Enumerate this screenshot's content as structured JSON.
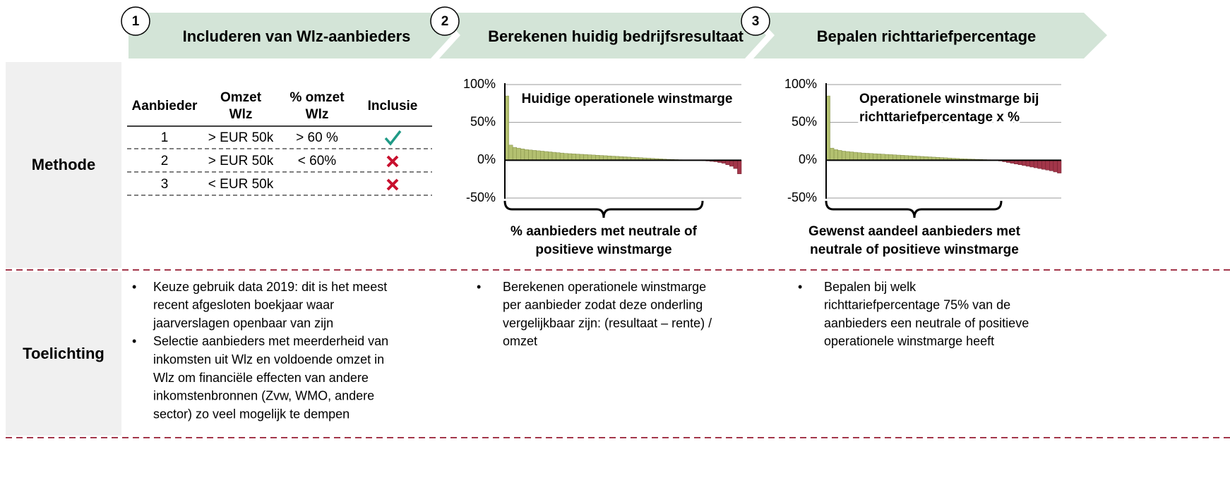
{
  "steps": [
    {
      "number": "1",
      "title": "Includeren van Wlz-aanbieders"
    },
    {
      "number": "2",
      "title": "Berekenen huidig bedrijfsresultaat"
    },
    {
      "number": "3",
      "title": "Bepalen richttariefpercentage"
    }
  ],
  "row_labels": [
    "Methode",
    "Toelichting"
  ],
  "table": {
    "headers": [
      [
        "Aanbieder"
      ],
      [
        "Omzet",
        "Wlz"
      ],
      [
        "% omzet",
        "Wlz"
      ],
      [
        "Inclusie"
      ]
    ],
    "rows": [
      {
        "cells": [
          "1",
          "> EUR 50k",
          "> 60 %"
        ],
        "included": true
      },
      {
        "cells": [
          "2",
          "> EUR 50k",
          "< 60%"
        ],
        "included": false
      },
      {
        "cells": [
          "3",
          "< EUR 50k"
        ],
        "included": false
      }
    ]
  },
  "charts": [
    {
      "type": "bar",
      "title": [
        "Huidige operationele winstmarge"
      ],
      "caption": [
        "% aanbieders met neutrale of",
        "positieve winstmarge"
      ],
      "color": "#b3c070",
      "negative_color": "#a3364a",
      "ylim": [
        -50,
        100
      ],
      "yticks": [
        {
          "value": -50,
          "label": "-50%"
        },
        {
          "value": 0,
          "label": "0%"
        },
        {
          "value": 50,
          "label": "50%"
        },
        {
          "value": 100,
          "label": "100%"
        }
      ],
      "values": [
        85,
        20,
        17,
        16,
        15,
        14,
        13.5,
        13,
        12.5,
        12,
        11.5,
        11,
        10.5,
        10,
        9.5,
        9,
        8.7,
        8.4,
        8.1,
        7.8,
        7.5,
        7.2,
        6.9,
        6.6,
        6.3,
        6,
        5.7,
        5.4,
        5.1,
        4.8,
        4.5,
        4.2,
        3.9,
        3.6,
        3.3,
        3,
        2.7,
        2.4,
        2.1,
        1.8,
        1.5,
        1.2,
        1,
        0.8,
        0.6,
        0.4,
        0.2,
        0.1,
        0,
        0,
        -0.5,
        -1,
        -1.5,
        -2,
        -3,
        -4,
        -6,
        -8,
        -11,
        -18
      ]
    },
    {
      "type": "bar",
      "title": [
        "Operationele winstmarge bij",
        "richttariefpercentage x %"
      ],
      "caption": [
        "Gewenst aandeel aanbieders met",
        "neutrale of positieve winstmarge"
      ],
      "color": "#b3c070",
      "negative_color": "#a3364a",
      "ylim": [
        -50,
        100
      ],
      "yticks": [
        {
          "value": -50,
          "label": "-50%"
        },
        {
          "value": 0,
          "label": "0%"
        },
        {
          "value": 50,
          "label": "50%"
        },
        {
          "value": 100,
          "label": "100%"
        }
      ],
      "values": [
        85,
        16,
        14,
        13,
        12,
        11.5,
        11,
        10.5,
        10,
        9.5,
        9.2,
        8.9,
        8.6,
        8.3,
        8,
        7.7,
        7.4,
        7.1,
        6.8,
        6.5,
        6.2,
        5.9,
        5.6,
        5.3,
        5,
        4.7,
        4.4,
        4.1,
        3.8,
        3.5,
        3.2,
        2.9,
        2.6,
        2.3,
        2,
        1.8,
        1.6,
        1.4,
        1.2,
        1,
        0.8,
        0.6,
        0.4,
        0.2,
        -1,
        -2,
        -3,
        -4,
        -5,
        -6,
        -7,
        -8,
        -9,
        -10,
        -11,
        -12,
        -13,
        -14,
        -15.5,
        -17
      ]
    }
  ],
  "notes": [
    [
      [
        "Keuze gebruik data 2019: dit is het meest",
        "recent afgesloten boekjaar waar",
        "jaarverslagen openbaar van zijn"
      ],
      [
        "Selectie aanbieders met meerderheid van",
        "inkomsten uit Wlz en voldoende omzet in",
        "Wlz om financiële effecten van andere",
        "inkomstenbronnen (Zvw, WMO, andere",
        "sector) zo veel mogelijk te dempen"
      ]
    ],
    [
      [
        "Berekenen operationele winstmarge",
        "per aanbieder zodat deze onderling",
        "vergelijkbaar zijn: (resultaat – rente) /",
        "omzet"
      ]
    ],
    [
      [
        "Bepalen bij welk",
        "richttariefpercentage 75% van de",
        "aanbieders een neutrale of positieve",
        "operationele winstmarge heeft"
      ]
    ]
  ]
}
